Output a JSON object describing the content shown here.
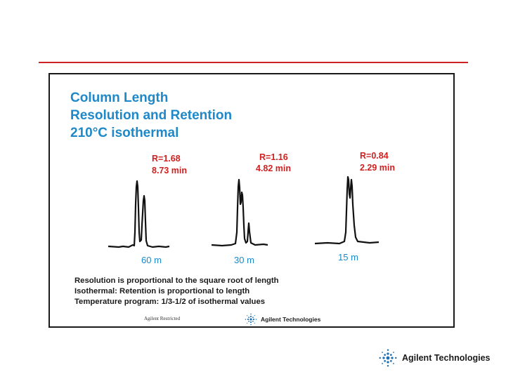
{
  "slide": {
    "title_lines": [
      "Column Length",
      "Resolution and Retention",
      "210°C isothermal"
    ],
    "notes": [
      "Resolution is proportional to the square root of length",
      "Isothermal: Retention is proportional to length",
      "Temperature program: 1/3-1/2 of isothermal values"
    ],
    "restricted_label": "Agilent Restricted",
    "brand_inner": "Agilent Technologies",
    "brand_footer": "Agilent Technologies",
    "colors": {
      "title": "#1e88c8",
      "labels": "#d02020",
      "rule": "#cc2222",
      "trace": "#111111"
    }
  },
  "chart_data": {
    "type": "line",
    "title": "Column Length Resolution and Retention 210°C isothermal",
    "xlabel": "",
    "ylabel": "",
    "grid": false,
    "series": [
      {
        "name": "60 m",
        "length": "60 m",
        "resolution_label": "R=1.68",
        "retention_label": "8.73 min",
        "resolution": 1.68,
        "retention_min": 8.73
      },
      {
        "name": "30 m",
        "length": "30 m",
        "resolution_label": "R=1.16",
        "retention_label": "4.82 min",
        "resolution": 1.16,
        "retention_min": 4.82
      },
      {
        "name": "15 m",
        "length": "15 m",
        "resolution_label": "R=0.84",
        "retention_label": "2.29 min",
        "resolution": 0.84,
        "retention_min": 2.29
      }
    ]
  }
}
